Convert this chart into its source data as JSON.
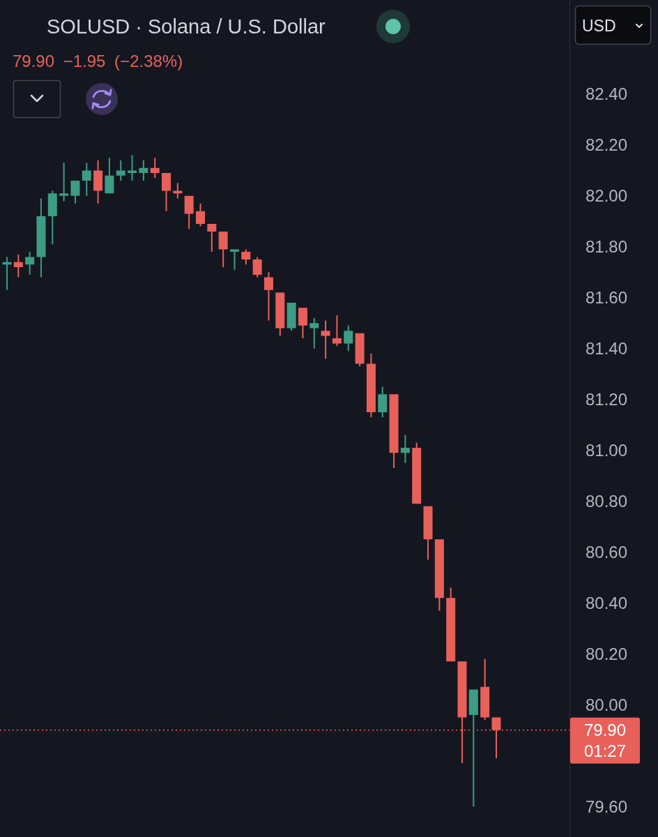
{
  "chart_data": {
    "type": "candlestick",
    "title": "SOLUSD · Solana / U.S. Dollar",
    "subtitle": "79.90 −1.95 (−2.38%)",
    "categories": [
      null,
      null,
      null,
      null,
      null,
      null,
      null,
      null,
      null,
      null,
      null,
      null,
      null,
      null,
      null,
      null,
      null,
      null,
      null,
      null,
      null,
      null,
      null,
      null,
      null,
      null,
      null,
      null,
      null,
      null,
      null,
      null,
      null,
      null,
      null,
      null,
      null,
      null,
      null,
      null,
      null,
      null,
      null,
      null
    ],
    "ohlc": [
      [
        81.73,
        81.76,
        81.63,
        81.74
      ],
      [
        81.74,
        81.77,
        81.68,
        81.72
      ],
      [
        81.73,
        81.78,
        81.69,
        81.76
      ],
      [
        81.76,
        81.99,
        81.68,
        81.92
      ],
      [
        81.92,
        82.02,
        81.81,
        82.01
      ],
      [
        82.0,
        82.13,
        81.98,
        82.01
      ],
      [
        82.0,
        82.06,
        81.97,
        82.06
      ],
      [
        82.06,
        82.13,
        82.0,
        82.1
      ],
      [
        82.1,
        82.14,
        81.97,
        82.02
      ],
      [
        82.01,
        82.15,
        82.01,
        82.08
      ],
      [
        82.08,
        82.14,
        82.06,
        82.1
      ],
      [
        82.09,
        82.16,
        82.06,
        82.1
      ],
      [
        82.09,
        82.14,
        82.06,
        82.11
      ],
      [
        82.11,
        82.15,
        82.07,
        82.09
      ],
      [
        82.09,
        82.09,
        81.94,
        82.02
      ],
      [
        82.02,
        82.05,
        81.99,
        82.01
      ],
      [
        82.0,
        82.0,
        81.87,
        81.93
      ],
      [
        81.94,
        81.97,
        81.88,
        81.89
      ],
      [
        81.89,
        81.89,
        81.78,
        81.86
      ],
      [
        81.86,
        81.86,
        81.72,
        81.79
      ],
      [
        81.78,
        81.79,
        81.71,
        81.79
      ],
      [
        81.78,
        81.79,
        81.73,
        81.75
      ],
      [
        81.75,
        81.76,
        81.68,
        81.69
      ],
      [
        81.68,
        81.7,
        81.51,
        81.63
      ],
      [
        81.62,
        81.62,
        81.45,
        81.48
      ],
      [
        81.48,
        81.58,
        81.47,
        81.58
      ],
      [
        81.56,
        81.56,
        81.44,
        81.49
      ],
      [
        81.48,
        81.52,
        81.4,
        81.5
      ],
      [
        81.47,
        81.51,
        81.36,
        81.45
      ],
      [
        81.44,
        81.53,
        81.41,
        81.42
      ],
      [
        81.42,
        81.49,
        81.39,
        81.47
      ],
      [
        81.46,
        81.46,
        81.33,
        81.34
      ],
      [
        81.34,
        81.38,
        81.13,
        81.15
      ],
      [
        81.15,
        81.25,
        81.13,
        81.22
      ],
      [
        81.22,
        81.22,
        80.93,
        80.99
      ],
      [
        80.99,
        81.06,
        80.95,
        81.01
      ],
      [
        81.01,
        81.03,
        80.79,
        80.79
      ],
      [
        80.78,
        80.78,
        80.57,
        80.65
      ],
      [
        80.65,
        80.65,
        80.37,
        80.42
      ],
      [
        80.42,
        80.46,
        80.17,
        80.17
      ],
      [
        80.17,
        80.17,
        79.77,
        79.95
      ],
      [
        79.96,
        80.06,
        79.6,
        80.06
      ],
      [
        80.07,
        80.18,
        79.94,
        79.95
      ],
      [
        79.95,
        79.95,
        79.79,
        79.9
      ]
    ],
    "colors": [
      "#3d9c84",
      "#e8605a",
      "#3d9c84",
      "#3d9c84",
      "#3d9c84",
      "#3d9c84",
      "#3d9c84",
      "#3d9c84",
      "#e8605a",
      "#3d9c84",
      "#3d9c84",
      "#3d9c84",
      "#3d9c84",
      "#e8605a",
      "#e8605a",
      "#e8605a",
      "#e8605a",
      "#e8605a",
      "#e8605a",
      "#e8605a",
      "#3d9c84",
      "#e8605a",
      "#e8605a",
      "#e8605a",
      "#e8605a",
      "#3d9c84",
      "#e8605a",
      "#3d9c84",
      "#e8605a",
      "#e8605a",
      "#3d9c84",
      "#e8605a",
      "#e8605a",
      "#3d9c84",
      "#e8605a",
      "#3d9c84",
      "#e8605a",
      "#e8605a",
      "#e8605a",
      "#e8605a",
      "#e8605a",
      "#3d9c84",
      "#e8605a",
      "#e8605a"
    ],
    "ylim": [
      79.48,
      82.77
    ],
    "yticks": [
      {
        "value": 82.4,
        "label": "82.40"
      },
      {
        "value": 82.2,
        "label": "82.20"
      },
      {
        "value": 82.0,
        "label": "82.00"
      },
      {
        "value": 81.8,
        "label": "81.80"
      },
      {
        "value": 81.6,
        "label": "81.60"
      },
      {
        "value": 81.4,
        "label": "81.40"
      },
      {
        "value": 81.2,
        "label": "81.20"
      },
      {
        "value": 81.0,
        "label": "81.00"
      },
      {
        "value": 80.8,
        "label": "80.80"
      },
      {
        "value": 80.6,
        "label": "80.60"
      },
      {
        "value": 80.4,
        "label": "80.40"
      },
      {
        "value": 80.2,
        "label": "80.20"
      },
      {
        "value": 80.0,
        "label": "80.00"
      },
      {
        "value": 79.6,
        "label": "79.60"
      }
    ],
    "tick_labels": "y",
    "ref_lines": [
      {
        "axis": "y",
        "value": 79.9,
        "label": "79.90",
        "color": "#e8605a",
        "line_style": "dotted"
      }
    ],
    "annotations": [
      "USD",
      "01:27"
    ]
  }
}
